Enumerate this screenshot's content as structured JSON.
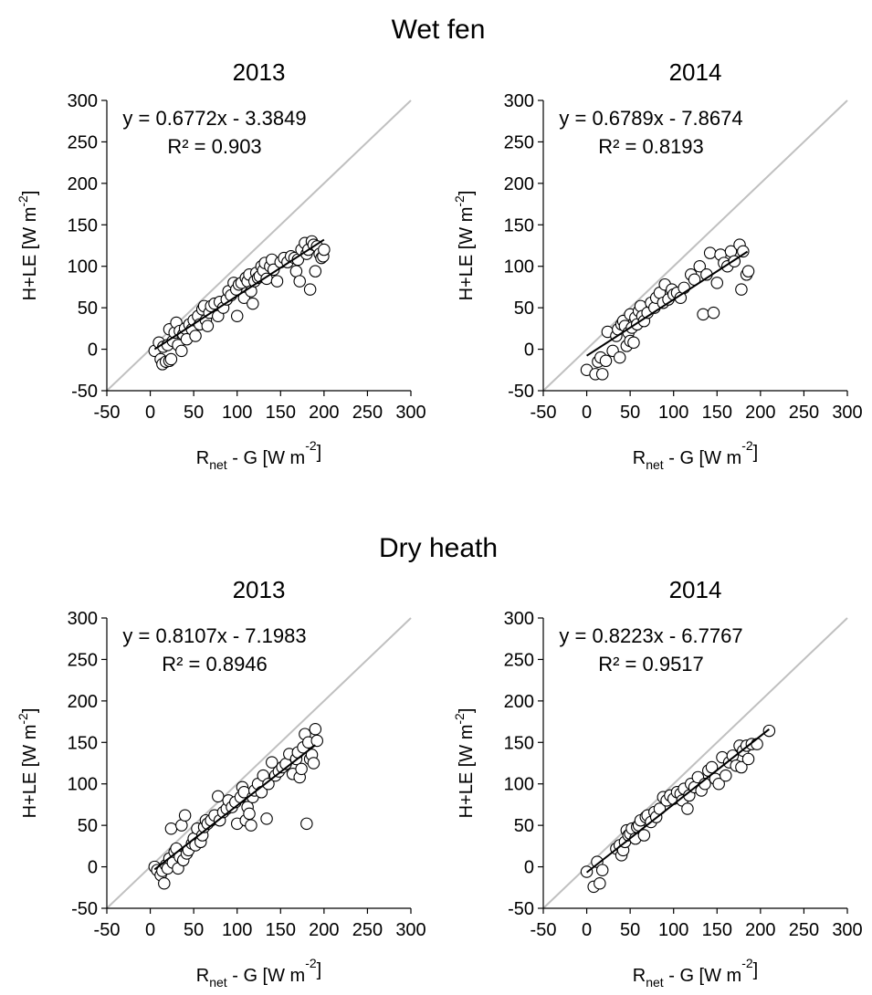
{
  "figure": {
    "groups": [
      "Wet fen",
      "Dry heath"
    ]
  },
  "chart_data": [
    {
      "type": "scatter",
      "group": "Wet fen",
      "title": "2013",
      "xlabel_main": "R",
      "xlabel_sub": "net",
      "xlabel_rest": " - G [W m",
      "xlabel_sup": "-2",
      "xlabel_end": "]",
      "ylabel": "H+LE [W m-2]",
      "ylabel_main": "H+LE [W m",
      "ylabel_sup": "-2",
      "ylabel_end": "]",
      "xlim": [
        -50,
        300
      ],
      "ylim": [
        -50,
        300
      ],
      "xticks": [
        -50,
        0,
        50,
        100,
        150,
        200,
        250,
        300
      ],
      "yticks": [
        -50,
        0,
        50,
        100,
        150,
        200,
        250,
        300
      ],
      "equation": "y = 0.6772x - 3.3849",
      "r2": "R² = 0.903",
      "fit": {
        "slope": 0.6772,
        "intercept": -3.3849,
        "x_range": [
          5,
          200
        ]
      },
      "one_to_one": true,
      "points": [
        [
          5,
          -2
        ],
        [
          10,
          8
        ],
        [
          12,
          -12
        ],
        [
          14,
          -18
        ],
        [
          15,
          3
        ],
        [
          18,
          -15
        ],
        [
          20,
          5
        ],
        [
          22,
          -14
        ],
        [
          24,
          -12
        ],
        [
          22,
          24
        ],
        [
          26,
          10
        ],
        [
          28,
          20
        ],
        [
          30,
          32
        ],
        [
          32,
          5
        ],
        [
          34,
          22
        ],
        [
          36,
          -2
        ],
        [
          38,
          18
        ],
        [
          40,
          25
        ],
        [
          42,
          12
        ],
        [
          45,
          30
        ],
        [
          48,
          24
        ],
        [
          50,
          35
        ],
        [
          52,
          16
        ],
        [
          55,
          40
        ],
        [
          57,
          30
        ],
        [
          60,
          48
        ],
        [
          62,
          52
        ],
        [
          64,
          35
        ],
        [
          66,
          28
        ],
        [
          68,
          44
        ],
        [
          70,
          52
        ],
        [
          74,
          55
        ],
        [
          78,
          40
        ],
        [
          80,
          57
        ],
        [
          84,
          50
        ],
        [
          88,
          60
        ],
        [
          90,
          70
        ],
        [
          93,
          65
        ],
        [
          96,
          80
        ],
        [
          99,
          72
        ],
        [
          100,
          40
        ],
        [
          102,
          78
        ],
        [
          105,
          80
        ],
        [
          108,
          62
        ],
        [
          110,
          86
        ],
        [
          112,
          82
        ],
        [
          114,
          90
        ],
        [
          116,
          70
        ],
        [
          118,
          55
        ],
        [
          120,
          82
        ],
        [
          122,
          92
        ],
        [
          124,
          86
        ],
        [
          126,
          88
        ],
        [
          128,
          100
        ],
        [
          130,
          95
        ],
        [
          132,
          104
        ],
        [
          134,
          85
        ],
        [
          138,
          100
        ],
        [
          140,
          108
        ],
        [
          142,
          96
        ],
        [
          146,
          82
        ],
        [
          150,
          105
        ],
        [
          154,
          110
        ],
        [
          158,
          105
        ],
        [
          162,
          112
        ],
        [
          166,
          110
        ],
        [
          168,
          94
        ],
        [
          170,
          108
        ],
        [
          172,
          82
        ],
        [
          174,
          120
        ],
        [
          178,
          128
        ],
        [
          180,
          115
        ],
        [
          182,
          120
        ],
        [
          184,
          72
        ],
        [
          186,
          130
        ],
        [
          188,
          126
        ],
        [
          190,
          94
        ],
        [
          192,
          124
        ],
        [
          195,
          115
        ],
        [
          197,
          110
        ],
        [
          199,
          112
        ],
        [
          200,
          120
        ]
      ]
    },
    {
      "type": "scatter",
      "group": "Wet fen",
      "title": "2014",
      "xlabel_main": "R",
      "xlabel_sub": "net",
      "xlabel_rest": " - G [W m",
      "xlabel_sup": "-2",
      "xlabel_end": "]",
      "ylabel": "H+LE [W m-2]",
      "ylabel_main": "H+LE [W m",
      "ylabel_sup": "-2",
      "ylabel_end": "]",
      "xlim": [
        -50,
        300
      ],
      "ylim": [
        -50,
        300
      ],
      "xticks": [
        -50,
        0,
        50,
        100,
        150,
        200,
        250,
        300
      ],
      "yticks": [
        -50,
        0,
        50,
        100,
        150,
        200,
        250,
        300
      ],
      "equation": "y = 0.6789x - 7.8674",
      "r2": "R² = 0.8193",
      "fit": {
        "slope": 0.6789,
        "intercept": -7.8674,
        "x_range": [
          0,
          185
        ]
      },
      "one_to_one": true,
      "points": [
        [
          0,
          -25
        ],
        [
          10,
          -30
        ],
        [
          13,
          -15
        ],
        [
          16,
          -10
        ],
        [
          18,
          -30
        ],
        [
          22,
          -14
        ],
        [
          24,
          21
        ],
        [
          30,
          -2
        ],
        [
          34,
          16
        ],
        [
          36,
          24
        ],
        [
          38,
          -10
        ],
        [
          40,
          30
        ],
        [
          42,
          34
        ],
        [
          44,
          28
        ],
        [
          46,
          4
        ],
        [
          48,
          20
        ],
        [
          50,
          10
        ],
        [
          50,
          42
        ],
        [
          52,
          26
        ],
        [
          54,
          8
        ],
        [
          56,
          38
        ],
        [
          58,
          30
        ],
        [
          60,
          46
        ],
        [
          62,
          52
        ],
        [
          64,
          40
        ],
        [
          66,
          34
        ],
        [
          70,
          44
        ],
        [
          74,
          56
        ],
        [
          78,
          50
        ],
        [
          80,
          62
        ],
        [
          84,
          68
        ],
        [
          88,
          56
        ],
        [
          90,
          78
        ],
        [
          94,
          60
        ],
        [
          98,
          72
        ],
        [
          100,
          66
        ],
        [
          104,
          68
        ],
        [
          108,
          62
        ],
        [
          112,
          74
        ],
        [
          120,
          90
        ],
        [
          124,
          84
        ],
        [
          130,
          100
        ],
        [
          134,
          42
        ],
        [
          138,
          90
        ],
        [
          142,
          116
        ],
        [
          146,
          44
        ],
        [
          150,
          80
        ],
        [
          154,
          114
        ],
        [
          158,
          104
        ],
        [
          162,
          100
        ],
        [
          166,
          118
        ],
        [
          170,
          106
        ],
        [
          176,
          126
        ],
        [
          178,
          72
        ],
        [
          180,
          118
        ],
        [
          184,
          90
        ],
        [
          186,
          94
        ]
      ]
    },
    {
      "type": "scatter",
      "group": "Dry heath",
      "title": "2013",
      "xlabel_main": "R",
      "xlabel_sub": "net",
      "xlabel_rest": " - G [W m",
      "xlabel_sup": "-2",
      "xlabel_end": "]",
      "ylabel": "H+LE [W m-2]",
      "ylabel_main": "H+LE [W m",
      "ylabel_sup": "-2",
      "ylabel_end": "]",
      "xlim": [
        -50,
        300
      ],
      "ylim": [
        -50,
        300
      ],
      "xticks": [
        -50,
        0,
        50,
        100,
        150,
        200,
        250,
        300
      ],
      "yticks": [
        -50,
        0,
        50,
        100,
        150,
        200,
        250,
        300
      ],
      "equation": "y = 0.8107x - 7.1983",
      "r2": "R² = 0.8946",
      "fit": {
        "slope": 0.8107,
        "intercept": -7.1983,
        "x_range": [
          5,
          190
        ]
      },
      "one_to_one": true,
      "points": [
        [
          5,
          0
        ],
        [
          8,
          -4
        ],
        [
          12,
          -10
        ],
        [
          14,
          -5
        ],
        [
          16,
          -20
        ],
        [
          18,
          2
        ],
        [
          20,
          -2
        ],
        [
          22,
          10
        ],
        [
          24,
          46
        ],
        [
          26,
          5
        ],
        [
          28,
          18
        ],
        [
          30,
          22
        ],
        [
          32,
          -2
        ],
        [
          34,
          12
        ],
        [
          36,
          50
        ],
        [
          38,
          8
        ],
        [
          40,
          62
        ],
        [
          42,
          16
        ],
        [
          44,
          20
        ],
        [
          48,
          28
        ],
        [
          50,
          34
        ],
        [
          52,
          26
        ],
        [
          54,
          46
        ],
        [
          58,
          30
        ],
        [
          60,
          38
        ],
        [
          62,
          48
        ],
        [
          64,
          56
        ],
        [
          66,
          52
        ],
        [
          70,
          56
        ],
        [
          74,
          62
        ],
        [
          78,
          85
        ],
        [
          80,
          56
        ],
        [
          84,
          66
        ],
        [
          88,
          70
        ],
        [
          90,
          80
        ],
        [
          94,
          72
        ],
        [
          98,
          78
        ],
        [
          100,
          52
        ],
        [
          104,
          84
        ],
        [
          106,
          96
        ],
        [
          108,
          90
        ],
        [
          110,
          56
        ],
        [
          112,
          72
        ],
        [
          114,
          64
        ],
        [
          116,
          50
        ],
        [
          118,
          84
        ],
        [
          120,
          92
        ],
        [
          124,
          100
        ],
        [
          128,
          90
        ],
        [
          130,
          110
        ],
        [
          134,
          58
        ],
        [
          136,
          100
        ],
        [
          140,
          126
        ],
        [
          144,
          110
        ],
        [
          148,
          115
        ],
        [
          152,
          120
        ],
        [
          156,
          124
        ],
        [
          160,
          136
        ],
        [
          164,
          112
        ],
        [
          168,
          130
        ],
        [
          170,
          138
        ],
        [
          172,
          108
        ],
        [
          174,
          118
        ],
        [
          176,
          144
        ],
        [
          178,
          160
        ],
        [
          180,
          52
        ],
        [
          182,
          150
        ],
        [
          184,
          130
        ],
        [
          186,
          135
        ],
        [
          188,
          125
        ],
        [
          190,
          166
        ],
        [
          192,
          152
        ]
      ]
    },
    {
      "type": "scatter",
      "group": "Dry heath",
      "title": "2014",
      "xlabel_main": "R",
      "xlabel_sub": "net",
      "xlabel_rest": " - G [W m",
      "xlabel_sup": "-2",
      "xlabel_end": "]",
      "ylabel": "H+LE [W m-2]",
      "ylabel_main": "H+LE [W m",
      "ylabel_sup": "-2",
      "ylabel_end": "]",
      "xlim": [
        -50,
        300
      ],
      "ylim": [
        -50,
        300
      ],
      "xticks": [
        -50,
        0,
        50,
        100,
        150,
        200,
        250,
        300
      ],
      "yticks": [
        -50,
        0,
        50,
        100,
        150,
        200,
        250,
        300
      ],
      "equation": "y = 0.8223x - 6.7767",
      "r2": "R² = 0.9517",
      "fit": {
        "slope": 0.8223,
        "intercept": -6.7767,
        "x_range": [
          0,
          210
        ]
      },
      "one_to_one": true,
      "points": [
        [
          0,
          -6
        ],
        [
          8,
          -24
        ],
        [
          12,
          6
        ],
        [
          15,
          -20
        ],
        [
          18,
          -4
        ],
        [
          34,
          22
        ],
        [
          38,
          26
        ],
        [
          40,
          14
        ],
        [
          42,
          20
        ],
        [
          44,
          30
        ],
        [
          46,
          44
        ],
        [
          48,
          38
        ],
        [
          50,
          40
        ],
        [
          52,
          46
        ],
        [
          56,
          34
        ],
        [
          58,
          48
        ],
        [
          60,
          50
        ],
        [
          62,
          56
        ],
        [
          66,
          38
        ],
        [
          68,
          60
        ],
        [
          70,
          62
        ],
        [
          74,
          54
        ],
        [
          78,
          66
        ],
        [
          80,
          60
        ],
        [
          84,
          70
        ],
        [
          88,
          84
        ],
        [
          92,
          80
        ],
        [
          96,
          86
        ],
        [
          100,
          82
        ],
        [
          104,
          90
        ],
        [
          108,
          88
        ],
        [
          110,
          80
        ],
        [
          112,
          94
        ],
        [
          116,
          70
        ],
        [
          118,
          86
        ],
        [
          120,
          100
        ],
        [
          124,
          96
        ],
        [
          128,
          108
        ],
        [
          132,
          92
        ],
        [
          136,
          100
        ],
        [
          140,
          116
        ],
        [
          144,
          120
        ],
        [
          148,
          106
        ],
        [
          152,
          100
        ],
        [
          156,
          132
        ],
        [
          160,
          110
        ],
        [
          164,
          126
        ],
        [
          168,
          134
        ],
        [
          172,
          122
        ],
        [
          176,
          146
        ],
        [
          178,
          120
        ],
        [
          180,
          140
        ],
        [
          184,
          146
        ],
        [
          186,
          130
        ],
        [
          190,
          148
        ],
        [
          196,
          148
        ],
        [
          210,
          164
        ]
      ]
    }
  ]
}
